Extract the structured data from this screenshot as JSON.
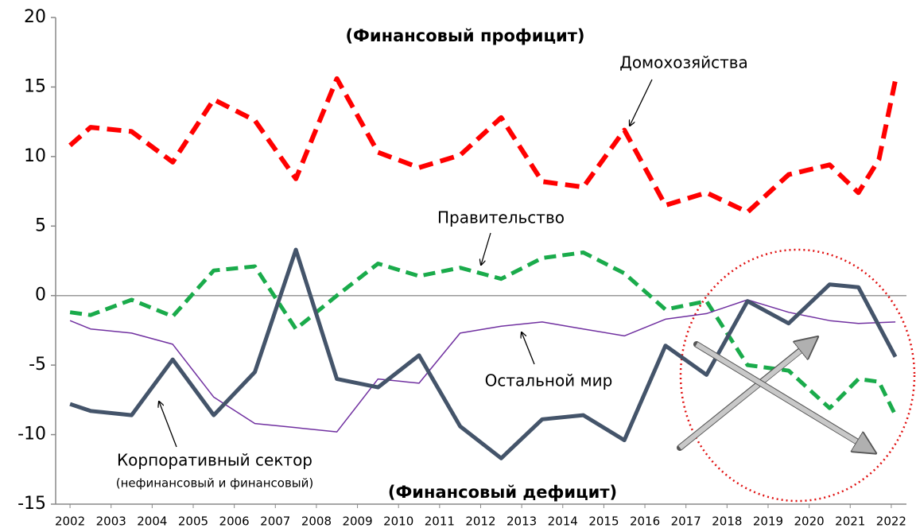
{
  "chart_data": {
    "type": "line",
    "annotations": [
      "(Финансовый профицит)",
      "(Финансовый дефицит)"
    ],
    "xlim": [
      2001.65,
      2022.37
    ],
    "xticks": [
      2002,
      2003,
      2004,
      2005,
      2006,
      2007,
      2008,
      2009,
      2010,
      2011,
      2012,
      2013,
      2014,
      2015,
      2016,
      2017,
      2018,
      2019,
      2020,
      2021,
      2022
    ],
    "ylim": [
      -15,
      20
    ],
    "yticks": [
      -15,
      -10,
      -5,
      0,
      5,
      10,
      15,
      20
    ],
    "grid": false,
    "series": [
      {
        "name": "Домохозяйства",
        "color": "#ff0000",
        "dash": true,
        "width": 6,
        "x": [
          2002,
          2002.5,
          2003.5,
          2004.5,
          2005.5,
          2006.5,
          2007.5,
          2008.5,
          2009.5,
          2010.5,
          2011.5,
          2012.5,
          2013.5,
          2014.5,
          2015.5,
          2016.5,
          2017.5,
          2018.5,
          2019.5,
          2020.5,
          2021.2,
          2021.7,
          2022.1
        ],
        "values": [
          10.8,
          12.1,
          11.8,
          9.6,
          14.1,
          12.6,
          8.4,
          15.6,
          10.3,
          9.2,
          10.1,
          12.8,
          8.2,
          7.8,
          11.9,
          6.5,
          7.4,
          6.0,
          8.7,
          9.4,
          7.4,
          9.8,
          15.5
        ]
      },
      {
        "name": "Правительство",
        "color": "#1aab4b",
        "dash": true,
        "width": 5,
        "x": [
          2002,
          2002.5,
          2003.5,
          2004.5,
          2005.5,
          2006.5,
          2007.5,
          2008.5,
          2009.5,
          2010.5,
          2011.5,
          2012.5,
          2013.5,
          2014.5,
          2015.5,
          2016.5,
          2017.5,
          2018.5,
          2019.5,
          2020.5,
          2021.2,
          2021.7,
          2022.1
        ],
        "values": [
          -1.2,
          -1.4,
          -0.3,
          -1.5,
          1.8,
          2.1,
          -2.4,
          0.0,
          2.3,
          1.4,
          2.0,
          1.2,
          2.7,
          3.1,
          1.6,
          -1.0,
          -0.4,
          -5.0,
          -5.4,
          -8.1,
          -6.0,
          -6.2,
          -8.6
        ]
      },
      {
        "name": "Остальной мир",
        "color": "#7030a0",
        "dash": false,
        "width": 1.5,
        "x": [
          2002,
          2002.5,
          2003.5,
          2004.5,
          2005.5,
          2006.5,
          2007.5,
          2008.5,
          2009.5,
          2010.5,
          2011.5,
          2012.5,
          2013.5,
          2014.5,
          2015.5,
          2016.5,
          2017.5,
          2018.5,
          2019.5,
          2020.5,
          2021.2,
          2022.1
        ],
        "values": [
          -1.8,
          -2.4,
          -2.7,
          -3.5,
          -7.3,
          -9.2,
          -9.5,
          -9.8,
          -6.0,
          -6.3,
          -2.7,
          -2.2,
          -1.9,
          -2.4,
          -2.9,
          -1.7,
          -1.3,
          -0.3,
          -1.2,
          -1.8,
          -2.0,
          -1.9
        ]
      },
      {
        "name": "Корпоративный сектор",
        "note": "(нефинансовый и финансовый)",
        "color": "#44546a",
        "dash": false,
        "width": 5,
        "x": [
          2002,
          2002.5,
          2003.5,
          2004.5,
          2005.5,
          2006.5,
          2007.5,
          2008.5,
          2009.5,
          2010.5,
          2011.5,
          2012.5,
          2013.5,
          2014.5,
          2015.5,
          2016.5,
          2017.5,
          2018.5,
          2019.5,
          2020.5,
          2021.2,
          2022.1
        ],
        "values": [
          -7.8,
          -8.3,
          -8.6,
          -4.6,
          -8.6,
          -5.5,
          3.3,
          -6.0,
          -6.6,
          -4.3,
          -9.4,
          -11.7,
          -8.9,
          -8.6,
          -10.4,
          -3.6,
          -5.7,
          -0.4,
          -2.0,
          0.8,
          0.6,
          -4.4
        ]
      }
    ]
  }
}
